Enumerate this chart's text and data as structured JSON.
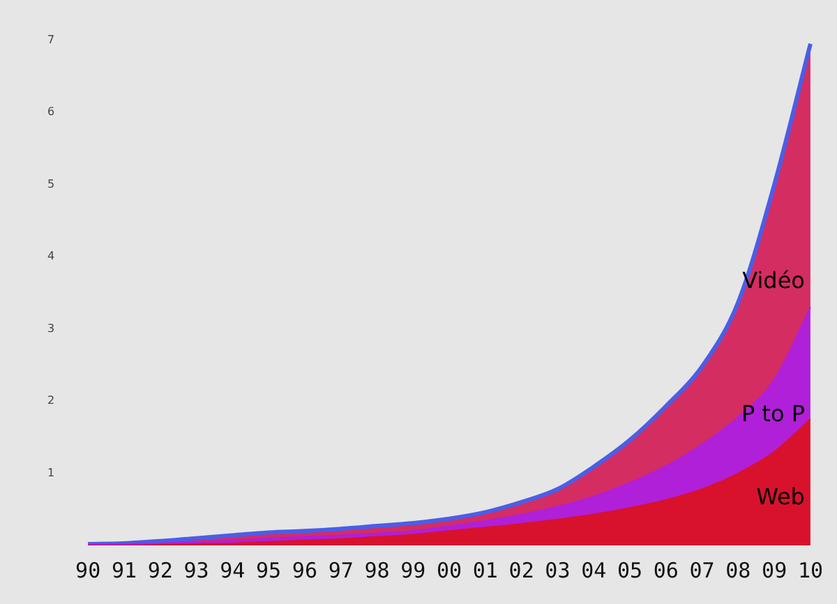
{
  "chart_data": {
    "type": "area",
    "stacked": true,
    "categories": [
      "90",
      "91",
      "92",
      "93",
      "94",
      "95",
      "96",
      "97",
      "98",
      "99",
      "00",
      "01",
      "02",
      "03",
      "04",
      "05",
      "06",
      "07",
      "08",
      "09",
      "10"
    ],
    "series": [
      {
        "name": "Web",
        "color": "#d8122c",
        "values": [
          0,
          0,
          0.01,
          0.02,
          0.03,
          0.05,
          0.07,
          0.09,
          0.12,
          0.15,
          0.2,
          0.25,
          0.3,
          0.36,
          0.43,
          0.52,
          0.63,
          0.78,
          1.0,
          1.3,
          1.75
        ]
      },
      {
        "name": "P to P",
        "color": "#b020d8",
        "values": [
          0.01,
          0.02,
          0.02,
          0.03,
          0.04,
          0.05,
          0.05,
          0.05,
          0.05,
          0.05,
          0.07,
          0.09,
          0.13,
          0.18,
          0.25,
          0.35,
          0.47,
          0.62,
          0.78,
          1.0,
          1.55
        ]
      },
      {
        "name": "Vidéo",
        "color": "#d42d62",
        "values": [
          0.01,
          0.01,
          0.03,
          0.05,
          0.07,
          0.08,
          0.08,
          0.09,
          0.1,
          0.11,
          0.1,
          0.12,
          0.17,
          0.24,
          0.41,
          0.59,
          0.83,
          1.08,
          1.59,
          2.7,
          3.65
        ]
      }
    ],
    "ylim": [
      0,
      7
    ],
    "yticks": [
      1,
      2,
      3,
      4,
      5,
      6,
      7
    ],
    "grid": false,
    "legend": false
  }
}
